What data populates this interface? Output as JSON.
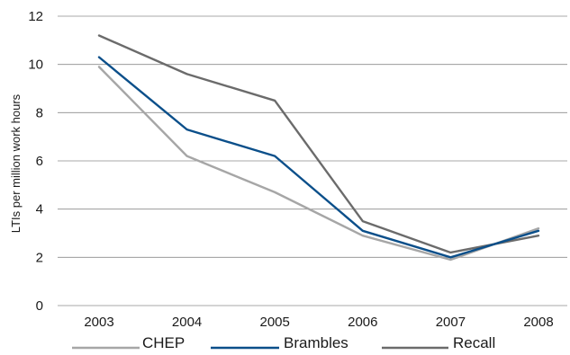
{
  "chart_data": {
    "type": "line",
    "title": "",
    "xlabel": "",
    "ylabel": "LTIs per million work hours",
    "categories": [
      "2003",
      "2004",
      "2005",
      "2006",
      "2007",
      "2008"
    ],
    "ylim": [
      0,
      12
    ],
    "yticks": [
      "0",
      "2",
      "4",
      "6",
      "8",
      "10",
      "12"
    ],
    "grid": true,
    "legend_position": "bottom",
    "series": [
      {
        "name": "CHEP",
        "color": "#a6a6a6",
        "values": [
          9.9,
          6.2,
          4.7,
          2.9,
          1.9,
          3.2
        ]
      },
      {
        "name": "Brambles",
        "color": "#0b4f8a",
        "values": [
          10.3,
          7.3,
          6.2,
          3.1,
          2.0,
          3.1
        ]
      },
      {
        "name": "Recall",
        "color": "#6b6b6b",
        "values": [
          11.2,
          9.6,
          8.5,
          3.5,
          2.2,
          2.9
        ]
      }
    ]
  }
}
